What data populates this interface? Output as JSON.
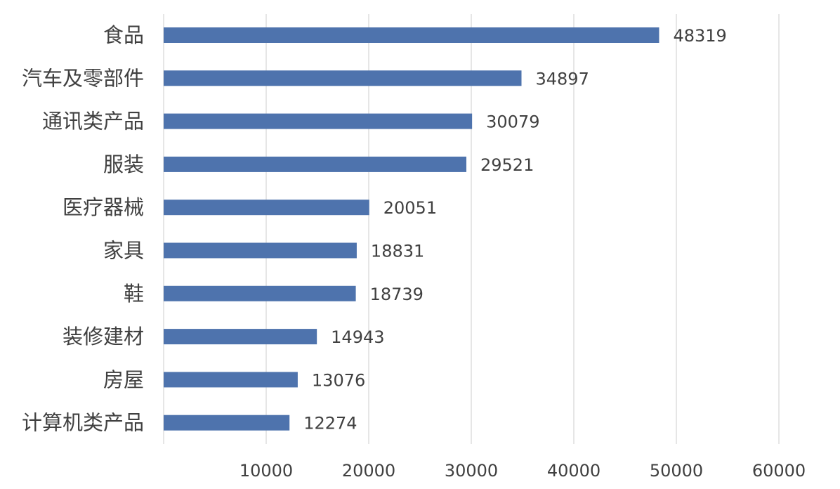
{
  "chart_data": {
    "type": "bar",
    "orientation": "horizontal",
    "categories": [
      "食品",
      "汽车及零部件",
      "通讯类产品",
      "服装",
      "医疗器械",
      "家具",
      "鞋",
      "装修建材",
      "房屋",
      "计算机类产品"
    ],
    "values": [
      48319,
      34897,
      30079,
      29521,
      20051,
      18831,
      18739,
      14943,
      13076,
      12274
    ],
    "data_labels": [
      "48319",
      "34897",
      "30079",
      "29521",
      "20051",
      "18831",
      "18739",
      "14943",
      "13076",
      "12274"
    ],
    "xticks": [
      10000,
      20000,
      30000,
      40000,
      50000,
      60000
    ],
    "xtick_labels": [
      "10000",
      "20000",
      "30000",
      "40000",
      "50000",
      "60000"
    ],
    "xlim": [
      0,
      60000
    ],
    "title": "",
    "xlabel": "",
    "ylabel": "",
    "grid": "vertical",
    "legend": "none",
    "colors": {
      "bar": "#4e73ad",
      "grid": "#d9d9d9",
      "text": "#404040"
    }
  }
}
